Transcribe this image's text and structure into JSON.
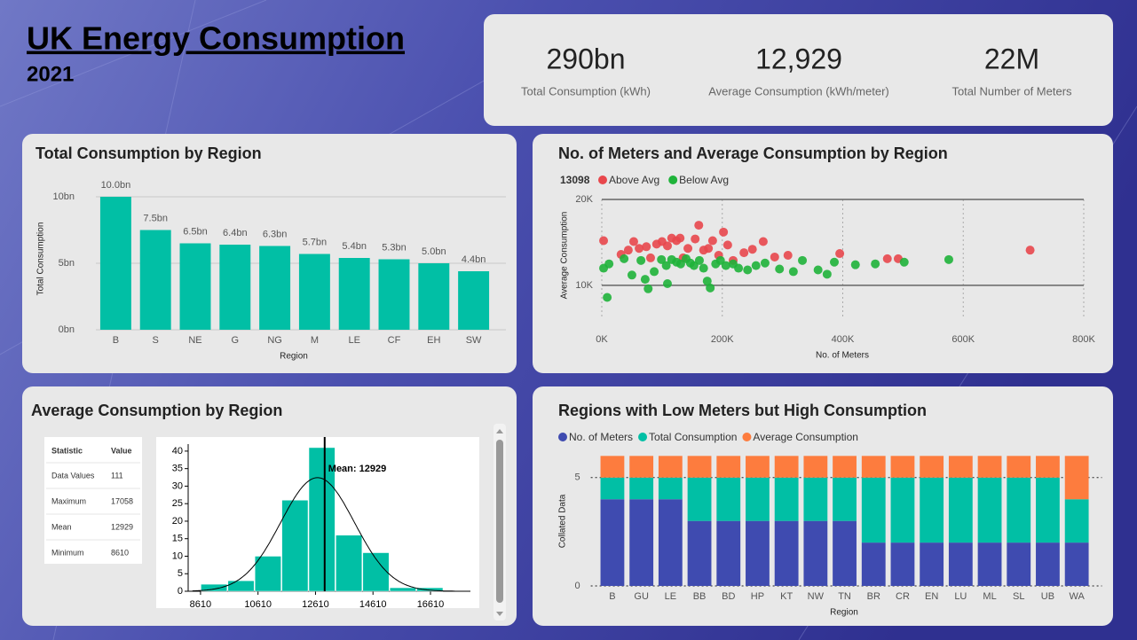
{
  "header": {
    "title": "UK Energy Consumption",
    "subtitle": "2021"
  },
  "kpis": [
    {
      "value": "290bn",
      "label": "Total Consumption (kWh)"
    },
    {
      "value": "12,929",
      "label": "Average Consumption (kWh/meter)"
    },
    {
      "value": "22M",
      "label": "Total Number of Meters"
    }
  ],
  "chart_data": [
    {
      "type": "bar",
      "title": "Total Consumption by Region",
      "x_label": "Region",
      "y_label": "Total Consumption",
      "categories": [
        "B",
        "S",
        "NE",
        "G",
        "NG",
        "M",
        "LE",
        "CF",
        "EH",
        "SW"
      ],
      "values": [
        10.0,
        7.5,
        6.5,
        6.4,
        6.3,
        5.7,
        5.4,
        5.3,
        5.0,
        4.4
      ],
      "value_labels": [
        "10.0bn",
        "7.5bn",
        "6.5bn",
        "6.4bn",
        "6.3bn",
        "5.7bn",
        "5.4bn",
        "5.3bn",
        "5.0bn",
        "4.4bn"
      ],
      "color": "#01bfa5",
      "ylim": [
        0,
        10.5
      ],
      "yticks": [
        {
          "value": 0,
          "label": "0bn"
        },
        {
          "value": 5,
          "label": "5bn"
        },
        {
          "value": 10,
          "label": "10bn"
        }
      ],
      "grid": true
    },
    {
      "type": "scatter",
      "title": "No. of Meters and Average Consumption by Region",
      "x_label": "No. of Meters",
      "y_label": "Average Consumption",
      "legend_title": 13098,
      "series": [
        {
          "name": "Above Avg",
          "color": "#e8474c",
          "x": [
            3000,
            32000,
            44000,
            53000,
            62000,
            74000,
            81000,
            91000,
            100000,
            109000,
            116000,
            124000,
            130000,
            135000,
            143000,
            155000,
            161000,
            169000,
            177000,
            184000,
            194000,
            202000,
            209000,
            218000,
            236000,
            250000,
            268000,
            287000,
            309000,
            395000,
            474000,
            492000,
            711000
          ],
          "y": [
            15200,
            13600,
            14100,
            15100,
            14300,
            14500,
            13200,
            14800,
            15100,
            14600,
            15500,
            15200,
            15500,
            13200,
            14300,
            15400,
            17000,
            14100,
            14300,
            15200,
            13500,
            16200,
            14700,
            12900,
            13800,
            14200,
            15100,
            13300,
            13500,
            13700,
            13100,
            13100,
            14100
          ]
        },
        {
          "name": "Below Avg",
          "color": "#1fb33a",
          "x": [
            9000,
            3000,
            12000,
            37000,
            50000,
            65000,
            72000,
            77000,
            87000,
            99000,
            107000,
            109000,
            116000,
            124000,
            131000,
            140000,
            147000,
            153000,
            162000,
            169000,
            175000,
            180000,
            189000,
            197000,
            206000,
            218000,
            227000,
            242000,
            256000,
            271000,
            295000,
            318000,
            333000,
            359000,
            374000,
            386000,
            421000,
            454000,
            502000,
            576000
          ],
          "y": [
            8600,
            12000,
            12500,
            13100,
            11200,
            12900,
            10700,
            9600,
            11600,
            13000,
            12300,
            10200,
            13000,
            12700,
            12500,
            13100,
            12600,
            12300,
            12900,
            12000,
            10500,
            9700,
            12500,
            12900,
            12300,
            12500,
            12000,
            11800,
            12300,
            12600,
            11900,
            11600,
            12900,
            11800,
            11300,
            12700,
            12400,
            12500,
            12700,
            13000
          ]
        }
      ],
      "xlim": [
        0,
        800000
      ],
      "ylim": [
        7000,
        20000
      ],
      "xticks": [
        {
          "value": 0,
          "label": "0K"
        },
        {
          "value": 200000,
          "label": "200K"
        },
        {
          "value": 400000,
          "label": "400K"
        },
        {
          "value": 600000,
          "label": "600K"
        },
        {
          "value": 800000,
          "label": "800K"
        }
      ],
      "yticks": [
        {
          "value": 10000,
          "label": "10K"
        },
        {
          "value": 20000,
          "label": "20K"
        }
      ],
      "grid": true
    },
    {
      "type": "histogram",
      "title": "Average Consumption by Region",
      "table": {
        "header": [
          "Statistic",
          "Value"
        ],
        "rows": [
          [
            "Data Values",
            111
          ],
          [
            "Maximum",
            17058
          ],
          [
            "Mean",
            12929
          ],
          [
            "Minimum",
            8610
          ]
        ]
      },
      "bins": [
        8610,
        9549,
        10487,
        11426,
        12365,
        13303,
        14242,
        15181,
        16119,
        17058
      ],
      "values": [
        2,
        3,
        10,
        26,
        41,
        16,
        11,
        1,
        1
      ],
      "color": "#01bfa5",
      "mean": 12929,
      "annotation": "Mean: 12929",
      "xlim": [
        8180,
        18000
      ],
      "ylim": [
        0,
        42
      ],
      "xticks": [
        8610,
        10610,
        12610,
        14610,
        16610
      ],
      "yticks": [
        0,
        5,
        10,
        15,
        20,
        25,
        30,
        35,
        40
      ]
    },
    {
      "type": "stacked_bar",
      "title": "Regions with Low Meters but High Consumption",
      "x_label": "Region",
      "y_label": "Collated Data",
      "categories": [
        "B",
        "GU",
        "LE",
        "BB",
        "BD",
        "HP",
        "KT",
        "NW",
        "TN",
        "BR",
        "CR",
        "EN",
        "LU",
        "ML",
        "SL",
        "UB",
        "WA"
      ],
      "series": [
        {
          "name": "No. of Meters",
          "color": "#3f4bb0",
          "values": [
            4,
            4,
            4,
            3,
            3,
            3,
            3,
            3,
            3,
            2,
            2,
            2,
            2,
            2,
            2,
            2,
            2
          ]
        },
        {
          "name": "Total Consumption",
          "color": "#01bfa5",
          "values": [
            1,
            1,
            1,
            2,
            2,
            2,
            2,
            2,
            2,
            3,
            3,
            3,
            3,
            3,
            3,
            3,
            2
          ]
        },
        {
          "name": "Average Consumption",
          "color": "#fd7c3e",
          "values": [
            1,
            1,
            1,
            1,
            1,
            1,
            1,
            1,
            1,
            1,
            1,
            1,
            1,
            1,
            1,
            1,
            2
          ]
        }
      ],
      "ylim": [
        0,
        6.3
      ],
      "yticks": [
        0,
        5
      ],
      "grid": true
    }
  ]
}
